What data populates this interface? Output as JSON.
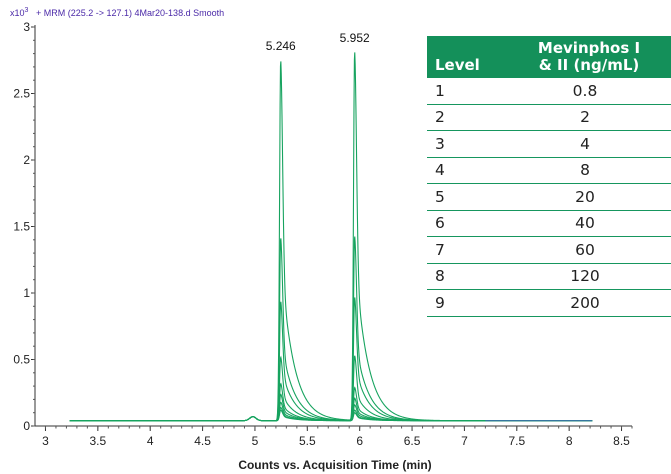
{
  "header": {
    "scale_base": "x10",
    "scale_exp": "3",
    "trace_info": "+ MRM (225.2 -> 127.1) 4Mar20-138.d  Smooth"
  },
  "colors": {
    "trace": "#17a35f",
    "baseline": "#3a6fa8",
    "table_header_bg": "#14905a",
    "table_rule": "#16965e",
    "header_text": "#4b2aa8"
  },
  "chart_data": {
    "type": "line",
    "xlabel": "Counts vs. Acquisition Time (min)",
    "ylabel": "",
    "xlim": [
      2.9,
      8.6
    ],
    "ylim": [
      0,
      3.0
    ],
    "x_ticks": [
      3,
      3.5,
      4,
      4.5,
      5,
      5.5,
      6,
      6.5,
      7,
      7.5,
      8,
      8.5
    ],
    "x_tick_labels": [
      "3",
      "3.5",
      "4",
      "4.5",
      "5",
      "5.5",
      "6",
      "6.5",
      "7",
      "7.5",
      "8",
      "8.5"
    ],
    "y_ticks": [
      0,
      0.5,
      1,
      1.5,
      2,
      2.5,
      3
    ],
    "y_tick_labels": [
      "0",
      "0.5",
      "1",
      "1.5",
      "2",
      "2.5",
      "3"
    ],
    "x_range": [
      3.23,
      8.22
    ],
    "baseline": 0.04,
    "peaks": [
      {
        "label": "5.246",
        "rt": 5.246
      },
      {
        "label": "5.952",
        "rt": 5.952
      }
    ],
    "series": [
      {
        "level": "1",
        "peak1_height": 0.08,
        "peak2_height": 0.06
      },
      {
        "level": "2",
        "peak1_height": 0.1,
        "peak2_height": 0.08
      },
      {
        "level": "3",
        "peak1_height": 0.14,
        "peak2_height": 0.12
      },
      {
        "level": "4",
        "peak1_height": 0.2,
        "peak2_height": 0.17
      },
      {
        "level": "5",
        "peak1_height": 0.28,
        "peak2_height": 0.25
      },
      {
        "level": "6",
        "peak1_height": 0.48,
        "peak2_height": 0.49
      },
      {
        "level": "7",
        "peak1_height": 0.9,
        "peak2_height": 0.93
      },
      {
        "level": "8",
        "peak1_height": 1.38,
        "peak2_height": 1.39
      },
      {
        "level": "9",
        "peak1_height": 2.72,
        "peak2_height": 2.78
      }
    ],
    "minor_bump": {
      "rt": 4.98,
      "height": 0.03
    }
  },
  "table": {
    "headers": {
      "level": "Level",
      "conc_line1": "Mevinphos I",
      "conc_line2": "& II (ng/mL)"
    },
    "rows": [
      {
        "level": "1",
        "conc": "0.8"
      },
      {
        "level": "2",
        "conc": "2"
      },
      {
        "level": "3",
        "conc": "4"
      },
      {
        "level": "4",
        "conc": "8"
      },
      {
        "level": "5",
        "conc": "20"
      },
      {
        "level": "6",
        "conc": "40"
      },
      {
        "level": "7",
        "conc": "60"
      },
      {
        "level": "8",
        "conc": "120"
      },
      {
        "level": "9",
        "conc": "200"
      }
    ]
  }
}
